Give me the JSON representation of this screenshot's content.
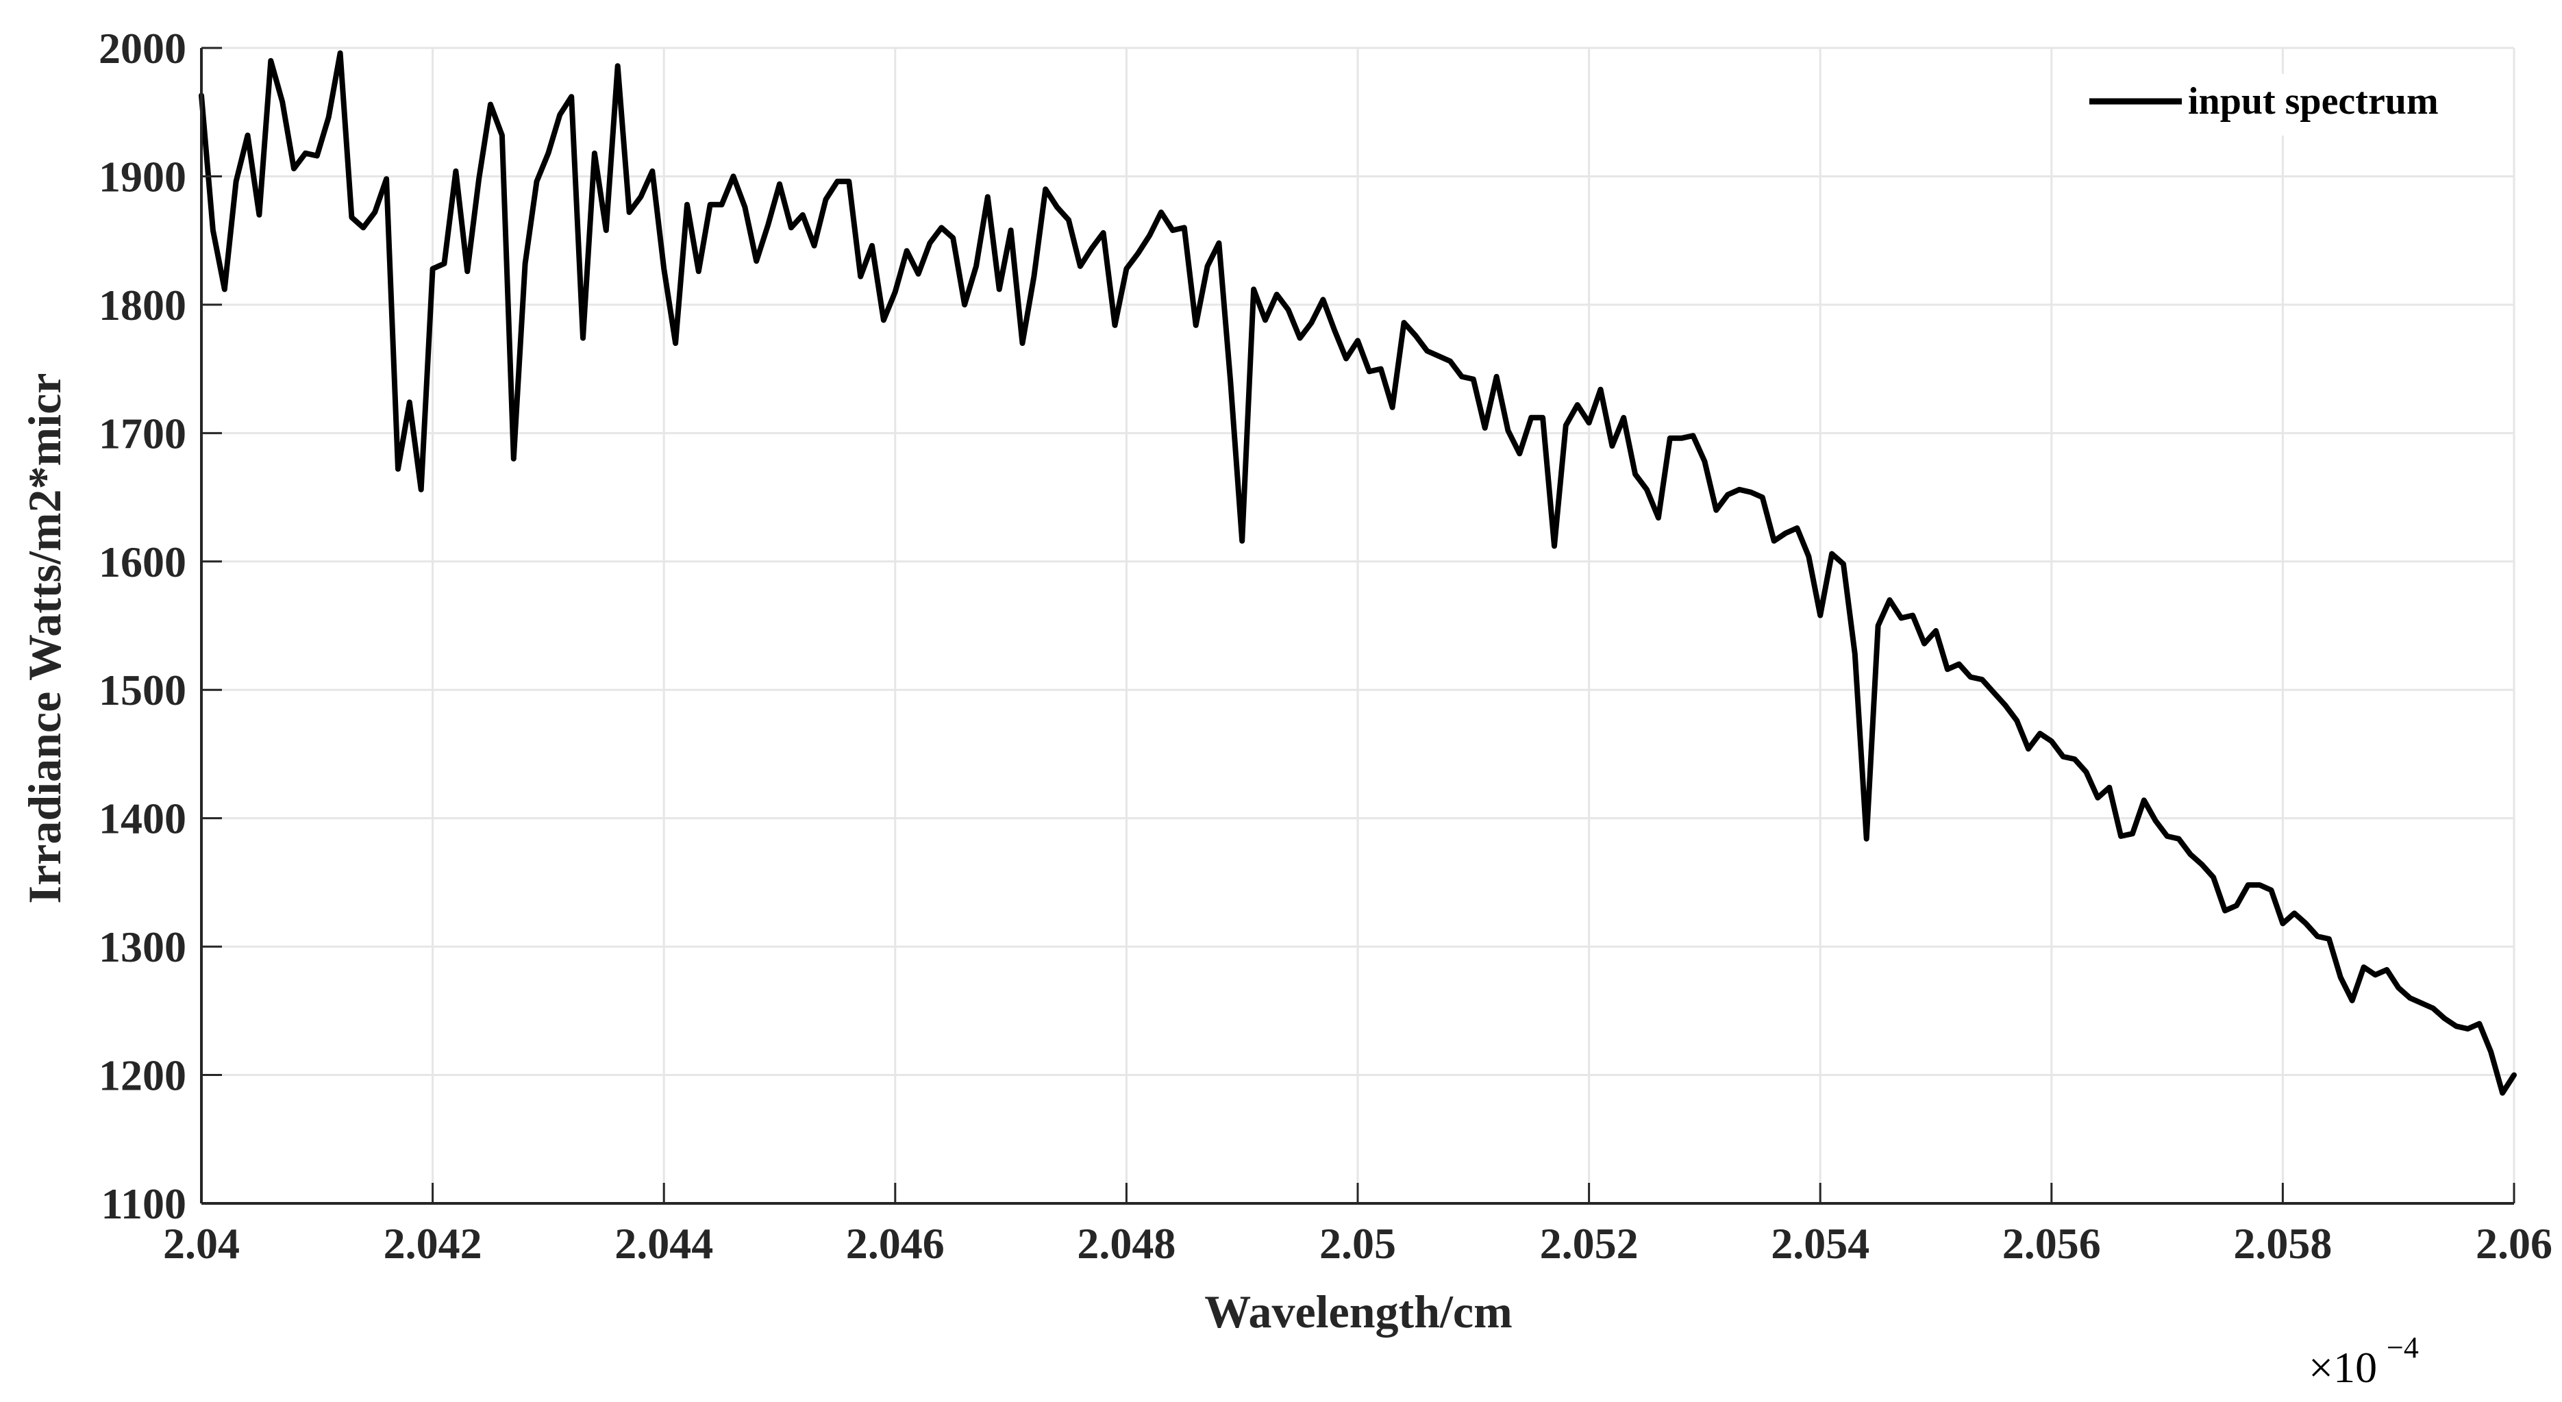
{
  "chart_data": {
    "type": "line",
    "title": "",
    "xlabel": "Wavelength/cm",
    "ylabel": "Irradiance Watts/m2*micr",
    "x_multiplier_label": "×10",
    "x_multiplier_exponent": "−4",
    "xlim": [
      2.04,
      2.06
    ],
    "ylim": [
      1100,
      2000
    ],
    "x_ticks": [
      2.04,
      2.042,
      2.044,
      2.046,
      2.048,
      2.05,
      2.052,
      2.054,
      2.056,
      2.058,
      2.06
    ],
    "x_tick_labels": [
      "2.04",
      "2.042",
      "2.044",
      "2.046",
      "2.048",
      "2.05",
      "2.052",
      "2.054",
      "2.056",
      "2.058",
      "2.06"
    ],
    "y_ticks": [
      1100,
      1200,
      1300,
      1400,
      1500,
      1600,
      1700,
      1800,
      1900,
      2000
    ],
    "y_tick_labels": [
      "1100",
      "1200",
      "1300",
      "1400",
      "1500",
      "1600",
      "1700",
      "1800",
      "1900",
      "2000"
    ],
    "grid": true,
    "legend_position": "top-right",
    "line_color": "#000000",
    "grid_color": "#e6e6e6",
    "axis_color": "#262626",
    "series": [
      {
        "name": "input spectrum",
        "x": [
          2.04,
          2.0401,
          2.0402,
          2.0403,
          2.0404,
          2.0405,
          2.0406,
          2.0407,
          2.0408,
          2.0409,
          2.041,
          2.0411,
          2.0412,
          2.0413,
          2.0414,
          2.0415,
          2.0416,
          2.0417,
          2.0418,
          2.0419,
          2.042,
          2.0421,
          2.0422,
          2.0423,
          2.0424,
          2.0425,
          2.0426,
          2.0427,
          2.0428,
          2.0429,
          2.043,
          2.0431,
          2.0432,
          2.0433,
          2.0434,
          2.0435,
          2.0436,
          2.0437,
          2.0438,
          2.0439,
          2.044,
          2.0441,
          2.0442,
          2.0443,
          2.0444,
          2.0445,
          2.0446,
          2.0447,
          2.0448,
          2.0449,
          2.045,
          2.0451,
          2.0452,
          2.0453,
          2.0454,
          2.0455,
          2.0456,
          2.0457,
          2.0458,
          2.0459,
          2.046,
          2.0461,
          2.0462,
          2.0463,
          2.0464,
          2.0465,
          2.0466,
          2.0467,
          2.0468,
          2.0469,
          2.047,
          2.0471,
          2.0472,
          2.0473,
          2.0474,
          2.0475,
          2.0476,
          2.0477,
          2.0478,
          2.0479,
          2.048,
          2.0481,
          2.0482,
          2.0483,
          2.0484,
          2.0485,
          2.0486,
          2.0487,
          2.0488,
          2.0489,
          2.049,
          2.0491,
          2.0492,
          2.0493,
          2.0494,
          2.0495,
          2.0496,
          2.0497,
          2.0498,
          2.0499,
          2.05,
          2.0501,
          2.0502,
          2.0503,
          2.0504,
          2.0505,
          2.0506,
          2.0507,
          2.0508,
          2.0509,
          2.051,
          2.0511,
          2.0512,
          2.0513,
          2.0514,
          2.0515,
          2.0516,
          2.0517,
          2.0518,
          2.0519,
          2.052,
          2.0521,
          2.0522,
          2.0523,
          2.0524,
          2.0525,
          2.0526,
          2.0527,
          2.0528,
          2.0529,
          2.053,
          2.0531,
          2.0532,
          2.0533,
          2.0534,
          2.0535,
          2.0536,
          2.0537,
          2.0538,
          2.0539,
          2.054,
          2.0541,
          2.0542,
          2.0543,
          2.0544,
          2.0545,
          2.0546,
          2.0547,
          2.0548,
          2.0549,
          2.055,
          2.0551,
          2.0552,
          2.0553,
          2.0554,
          2.0555,
          2.0556,
          2.0557,
          2.0558,
          2.0559,
          2.056,
          2.0561,
          2.0562,
          2.0563,
          2.0564,
          2.0565,
          2.0566,
          2.0567,
          2.0568,
          2.0569,
          2.057,
          2.0571,
          2.0572,
          2.0573,
          2.0574,
          2.0575,
          2.0576,
          2.0577,
          2.0578,
          2.0579,
          2.058,
          2.0581,
          2.0582,
          2.0583,
          2.0584,
          2.0585,
          2.0586,
          2.0587,
          2.0588,
          2.0589,
          2.059,
          2.0591,
          2.0592,
          2.0593,
          2.0594,
          2.0595,
          2.0596,
          2.0597,
          2.0598,
          2.0599,
          2.06
        ],
        "y": [
          1963,
          1858,
          1812,
          1896,
          1932,
          1870,
          1990,
          1958,
          1906,
          1918,
          1916,
          1946,
          1996,
          1868,
          1860,
          1872,
          1898,
          1672,
          1724,
          1656,
          1828,
          1832,
          1904,
          1826,
          1898,
          1956,
          1932,
          1680,
          1832,
          1896,
          1918,
          1948,
          1962,
          1774,
          1918,
          1858,
          1986,
          1872,
          1884,
          1904,
          1828,
          1770,
          1878,
          1826,
          1878,
          1878,
          1900,
          1876,
          1834,
          1862,
          1894,
          1860,
          1870,
          1846,
          1882,
          1896,
          1896,
          1822,
          1846,
          1788,
          1810,
          1842,
          1824,
          1848,
          1860,
          1852,
          1800,
          1830,
          1884,
          1812,
          1858,
          1770,
          1822,
          1890,
          1876,
          1866,
          1830,
          1844,
          1856,
          1784,
          1828,
          1840,
          1854,
          1872,
          1858,
          1860,
          1784,
          1830,
          1848,
          1740,
          1616,
          1812,
          1788,
          1808,
          1796,
          1774,
          1786,
          1804,
          1780,
          1758,
          1772,
          1748,
          1750,
          1720,
          1786,
          1776,
          1764,
          1760,
          1756,
          1744,
          1742,
          1704,
          1744,
          1702,
          1684,
          1712,
          1712,
          1612,
          1706,
          1722,
          1708,
          1734,
          1690,
          1712,
          1668,
          1656,
          1634,
          1696,
          1696,
          1698,
          1678,
          1640,
          1652,
          1656,
          1654,
          1650,
          1616,
          1622,
          1626,
          1604,
          1558,
          1606,
          1598,
          1528,
          1384,
          1550,
          1570,
          1556,
          1558,
          1536,
          1546,
          1516,
          1520,
          1510,
          1508,
          1498,
          1488,
          1476,
          1454,
          1466,
          1460,
          1448,
          1446,
          1436,
          1416,
          1424,
          1386,
          1388,
          1414,
          1398,
          1386,
          1384,
          1372,
          1364,
          1354,
          1328,
          1332,
          1348,
          1348,
          1344,
          1318,
          1326,
          1318,
          1308,
          1306,
          1276,
          1258,
          1284,
          1278,
          1282,
          1268,
          1260,
          1256,
          1252,
          1244,
          1238,
          1236,
          1240,
          1218,
          1186,
          1200
        ]
      }
    ]
  }
}
